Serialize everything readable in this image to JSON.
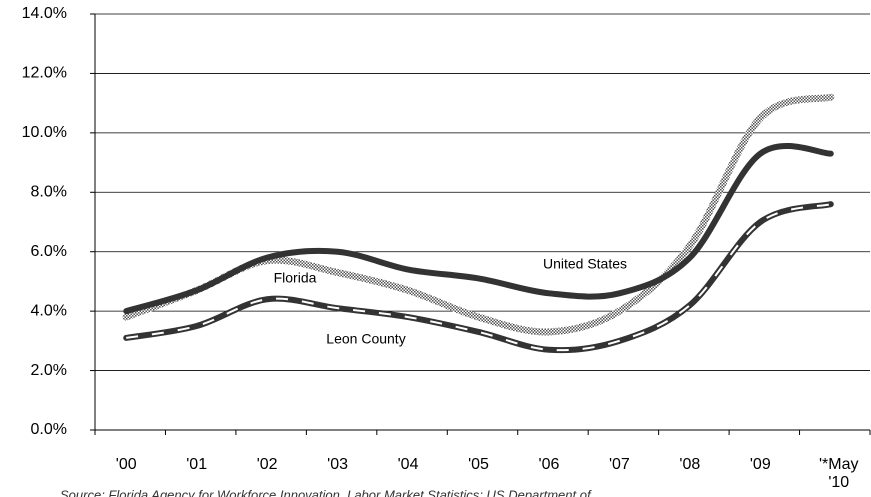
{
  "chart_data": {
    "type": "line",
    "categories": [
      "'00",
      "'01",
      "'02",
      "'03",
      "'04",
      "'05",
      "'06",
      "'07",
      "'08",
      "'09",
      "'*May '10"
    ],
    "series": [
      {
        "name": "United States",
        "color": "#333333",
        "line_style": "solid",
        "values": [
          4.0,
          4.7,
          5.8,
          6.0,
          5.4,
          5.1,
          4.6,
          4.6,
          5.8,
          9.3,
          9.3
        ]
      },
      {
        "name": "Florida",
        "color": "#999999",
        "line_style": "hatched",
        "values": [
          3.8,
          4.7,
          5.7,
          5.3,
          4.7,
          3.8,
          3.3,
          4.0,
          6.2,
          10.5,
          11.2
        ]
      },
      {
        "name": "Leon County",
        "color": "#333333",
        "line_style": "dashed",
        "values": [
          3.1,
          3.5,
          4.4,
          4.1,
          3.8,
          3.3,
          2.7,
          3.0,
          4.2,
          7.0,
          7.6
        ]
      }
    ],
    "ylim": [
      0,
      14
    ],
    "yticks": [
      {
        "value": 0,
        "label": "0.0%"
      },
      {
        "value": 2,
        "label": "2.0%"
      },
      {
        "value": 4,
        "label": "4.0%"
      },
      {
        "value": 6,
        "label": "6.0%"
      },
      {
        "value": 8,
        "label": "8.0%"
      },
      {
        "value": 10,
        "label": "10.0%"
      },
      {
        "value": 12,
        "label": "12.0%"
      },
      {
        "value": 14,
        "label": "14.0%"
      }
    ],
    "grid": true,
    "annotations": [
      "United States",
      "Florida",
      "Leon County"
    ],
    "source": "Source: Florida Agency for Workforce Innovation, Labor Market Statistics; US Department of"
  }
}
